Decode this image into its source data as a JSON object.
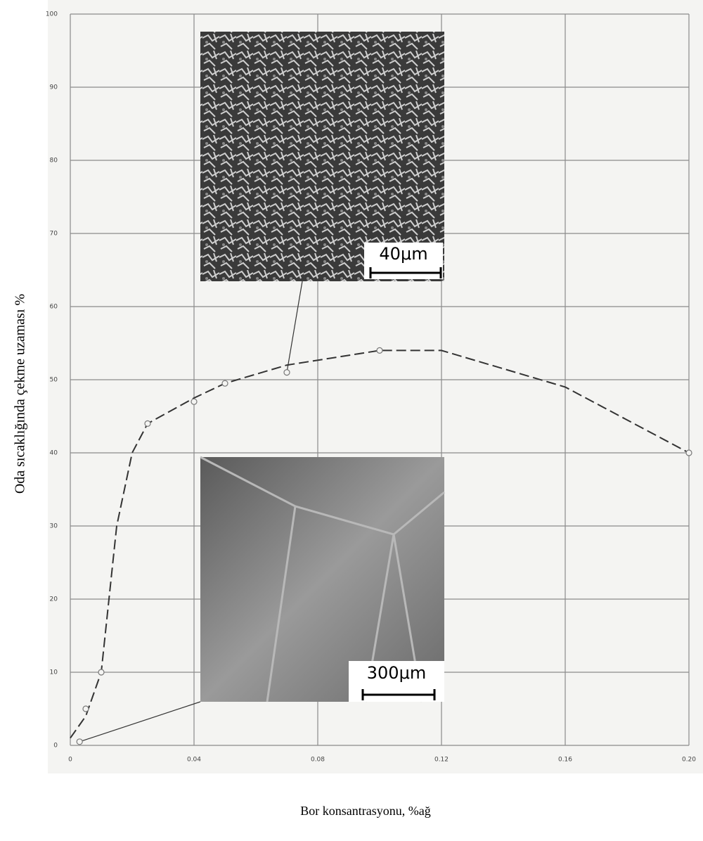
{
  "chart_data": {
    "type": "line",
    "ylabel": "Oda sıcaklığında çekme uzaması %",
    "xlabel": "Bor konsantrasyonu, %ağ",
    "xlim": [
      0,
      0.2
    ],
    "ylim": [
      0,
      100
    ],
    "xticks": [
      0,
      0.04,
      0.08,
      0.12,
      0.16,
      {
        "value": 0.2,
        "label": "0.20"
      }
    ],
    "yticks": [
      0,
      10,
      20,
      30,
      40,
      50,
      60,
      70,
      80,
      90,
      100
    ],
    "grid": true,
    "annotations": [
      "40μm",
      "300μm"
    ],
    "series": [
      {
        "color": "#333333",
        "style": "dashed",
        "x": [
          0,
          0.005,
          0.01,
          0.015,
          0.02,
          0.025,
          0.04,
          0.05,
          0.07,
          0.1,
          0.12,
          0.16,
          0.2
        ],
        "values": [
          1,
          4,
          10,
          30,
          40,
          44,
          47.5,
          49.5,
          52,
          54,
          54,
          49,
          40
        ]
      },
      {
        "color": "#777777",
        "marker": "circle",
        "x": [
          0.003,
          0.005,
          0.01,
          0.025,
          0.04,
          0.05,
          0.07,
          0.1,
          0.2
        ],
        "values": [
          0.5,
          5,
          10,
          44,
          47,
          49.5,
          51,
          54,
          40
        ]
      }
    ]
  }
}
